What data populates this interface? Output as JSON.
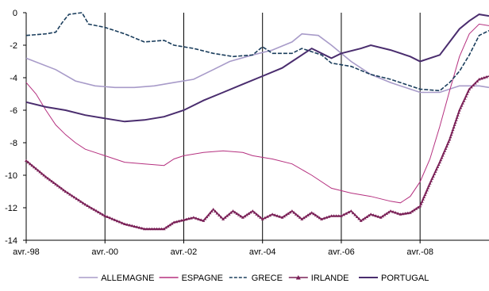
{
  "chart_data": {
    "type": "line",
    "xlabel": "",
    "ylabel": "",
    "x_start": "1998-04",
    "x_end": "2010-01",
    "x_ticks": [
      "avr.-98",
      "avr.-00",
      "avr.-02",
      "avr.-04",
      "avr.-06",
      "avr.-08"
    ],
    "ylim": [
      -14,
      0
    ],
    "y_ticks": [
      "0",
      "-2",
      "-4",
      "-6",
      "-8",
      "-10",
      "-12",
      "-14"
    ],
    "grid": "vertical lines at x tick positions",
    "legend_position": "bottom",
    "series": [
      {
        "name": "ALLEMAGNE",
        "color": "#a89bc9",
        "style": "solid",
        "points": [
          [
            "1998-04",
            -2.8
          ],
          [
            "1999-01",
            -3.5
          ],
          [
            "1999-07",
            -4.2
          ],
          [
            "2000-01",
            -4.5
          ],
          [
            "2000-07",
            -4.6
          ],
          [
            "2001-01",
            -4.6
          ],
          [
            "2001-07",
            -4.5
          ],
          [
            "2002-01",
            -4.3
          ],
          [
            "2002-07",
            -4.1
          ],
          [
            "2003-01",
            -3.5
          ],
          [
            "2003-06",
            -3.0
          ],
          [
            "2004-01",
            -2.6
          ],
          [
            "2004-07",
            -2.3
          ],
          [
            "2005-01",
            -1.8
          ],
          [
            "2005-04",
            -1.3
          ],
          [
            "2005-09",
            -1.4
          ],
          [
            "2006-01",
            -2.0
          ],
          [
            "2006-07",
            -3.0
          ],
          [
            "2007-01",
            -3.8
          ],
          [
            "2007-07",
            -4.3
          ],
          [
            "2008-01",
            -4.7
          ],
          [
            "2008-04",
            -4.9
          ],
          [
            "2008-10",
            -4.9
          ],
          [
            "2009-04",
            -4.5
          ],
          [
            "2009-10",
            -4.5
          ],
          [
            "2010-01",
            -4.6
          ]
        ]
      },
      {
        "name": "ESPAGNE",
        "color": "#b5307f",
        "style": "solid",
        "points": [
          [
            "1998-04",
            -4.3
          ],
          [
            "1998-07",
            -5.0
          ],
          [
            "1998-10",
            -6.0
          ],
          [
            "1999-01",
            -6.9
          ],
          [
            "1999-04",
            -7.5
          ],
          [
            "1999-07",
            -8.0
          ],
          [
            "1999-10",
            -8.4
          ],
          [
            "2000-04",
            -8.8
          ],
          [
            "2000-10",
            -9.2
          ],
          [
            "2001-04",
            -9.3
          ],
          [
            "2001-10",
            -9.4
          ],
          [
            "2002-01",
            -9.0
          ],
          [
            "2002-04",
            -8.8
          ],
          [
            "2002-10",
            -8.6
          ],
          [
            "2003-04",
            -8.5
          ],
          [
            "2003-10",
            -8.6
          ],
          [
            "2004-01",
            -8.8
          ],
          [
            "2004-07",
            -9.0
          ],
          [
            "2005-01",
            -9.3
          ],
          [
            "2005-07",
            -10.0
          ],
          [
            "2006-01",
            -10.8
          ],
          [
            "2006-07",
            -11.1
          ],
          [
            "2007-01",
            -11.3
          ],
          [
            "2007-07",
            -11.6
          ],
          [
            "2007-10",
            -11.7
          ],
          [
            "2008-01",
            -11.3
          ],
          [
            "2008-04",
            -10.4
          ],
          [
            "2008-07",
            -9.0
          ],
          [
            "2008-10",
            -7.0
          ],
          [
            "2009-01",
            -4.8
          ],
          [
            "2009-04",
            -2.7
          ],
          [
            "2009-07",
            -1.3
          ],
          [
            "2009-10",
            -0.7
          ],
          [
            "2010-01",
            -0.8
          ]
        ]
      },
      {
        "name": "GRECE",
        "color": "#1a3d5c",
        "style": "dashed",
        "points": [
          [
            "1998-04",
            -1.4
          ],
          [
            "1998-10",
            -1.3
          ],
          [
            "1999-01",
            -1.2
          ],
          [
            "1999-03",
            -0.6
          ],
          [
            "1999-05",
            -0.1
          ],
          [
            "1999-09",
            0.0
          ],
          [
            "1999-11",
            -0.7
          ],
          [
            "2000-04",
            -0.9
          ],
          [
            "2000-10",
            -1.3
          ],
          [
            "2001-04",
            -1.8
          ],
          [
            "2001-10",
            -1.7
          ],
          [
            "2002-01",
            -2.0
          ],
          [
            "2002-07",
            -2.2
          ],
          [
            "2003-01",
            -2.5
          ],
          [
            "2003-07",
            -2.7
          ],
          [
            "2004-01",
            -2.6
          ],
          [
            "2004-04",
            -2.1
          ],
          [
            "2004-07",
            -2.5
          ],
          [
            "2005-01",
            -2.5
          ],
          [
            "2005-04",
            -2.2
          ],
          [
            "2005-10",
            -2.6
          ],
          [
            "2006-01",
            -3.1
          ],
          [
            "2006-07",
            -3.3
          ],
          [
            "2007-01",
            -3.8
          ],
          [
            "2007-07",
            -4.1
          ],
          [
            "2008-01",
            -4.5
          ],
          [
            "2008-04",
            -4.7
          ],
          [
            "2008-10",
            -4.8
          ],
          [
            "2009-01",
            -4.3
          ],
          [
            "2009-04",
            -3.6
          ],
          [
            "2009-07",
            -2.6
          ],
          [
            "2009-10",
            -1.4
          ],
          [
            "2010-01",
            -1.1
          ]
        ]
      },
      {
        "name": "IRLANDE",
        "color": "#7a2057",
        "style": "marker",
        "points": [
          [
            "1998-04",
            -9.1
          ],
          [
            "1998-10",
            -10.1
          ],
          [
            "1999-04",
            -11.0
          ],
          [
            "1999-10",
            -11.8
          ],
          [
            "2000-04",
            -12.5
          ],
          [
            "2000-10",
            -13.0
          ],
          [
            "2001-04",
            -13.3
          ],
          [
            "2001-10",
            -13.3
          ],
          [
            "2002-01",
            -12.9
          ],
          [
            "2002-07",
            -12.6
          ],
          [
            "2002-10",
            -12.8
          ],
          [
            "2003-01",
            -12.1
          ],
          [
            "2003-04",
            -12.7
          ],
          [
            "2003-07",
            -12.2
          ],
          [
            "2003-10",
            -12.6
          ],
          [
            "2004-01",
            -12.2
          ],
          [
            "2004-04",
            -12.7
          ],
          [
            "2004-07",
            -12.4
          ],
          [
            "2004-10",
            -12.6
          ],
          [
            "2005-01",
            -12.2
          ],
          [
            "2005-04",
            -12.7
          ],
          [
            "2005-07",
            -12.3
          ],
          [
            "2005-10",
            -12.7
          ],
          [
            "2006-01",
            -12.5
          ],
          [
            "2006-04",
            -12.5
          ],
          [
            "2006-07",
            -12.2
          ],
          [
            "2006-10",
            -12.8
          ],
          [
            "2007-01",
            -12.4
          ],
          [
            "2007-04",
            -12.6
          ],
          [
            "2007-07",
            -12.2
          ],
          [
            "2007-10",
            -12.4
          ],
          [
            "2008-01",
            -12.3
          ],
          [
            "2008-04",
            -11.9
          ],
          [
            "2008-07",
            -10.5
          ],
          [
            "2008-10",
            -9.2
          ],
          [
            "2009-01",
            -7.8
          ],
          [
            "2009-04",
            -6.0
          ],
          [
            "2009-07",
            -4.7
          ],
          [
            "2009-10",
            -4.1
          ],
          [
            "2010-01",
            -3.9
          ]
        ]
      },
      {
        "name": "PORTUGAL",
        "color": "#4a2d6e",
        "style": "solid",
        "points": [
          [
            "1998-04",
            -5.5
          ],
          [
            "1998-10",
            -5.8
          ],
          [
            "1999-04",
            -6.0
          ],
          [
            "1999-10",
            -6.3
          ],
          [
            "2000-04",
            -6.5
          ],
          [
            "2000-10",
            -6.7
          ],
          [
            "2001-04",
            -6.6
          ],
          [
            "2001-10",
            -6.4
          ],
          [
            "2002-04",
            -6.0
          ],
          [
            "2002-10",
            -5.4
          ],
          [
            "2003-04",
            -4.9
          ],
          [
            "2003-10",
            -4.4
          ],
          [
            "2004-04",
            -3.9
          ],
          [
            "2004-10",
            -3.4
          ],
          [
            "2005-01",
            -3.0
          ],
          [
            "2005-04",
            -2.6
          ],
          [
            "2005-07",
            -2.2
          ],
          [
            "2005-10",
            -2.5
          ],
          [
            "2006-01",
            -2.8
          ],
          [
            "2006-04",
            -2.5
          ],
          [
            "2006-10",
            -2.2
          ],
          [
            "2007-01",
            -2.0
          ],
          [
            "2007-07",
            -2.3
          ],
          [
            "2008-01",
            -2.7
          ],
          [
            "2008-04",
            -3.0
          ],
          [
            "2008-10",
            -2.6
          ],
          [
            "2009-01",
            -1.8
          ],
          [
            "2009-04",
            -1.0
          ],
          [
            "2009-07",
            -0.5
          ],
          [
            "2009-10",
            -0.1
          ],
          [
            "2010-01",
            -0.2
          ]
        ]
      }
    ]
  }
}
